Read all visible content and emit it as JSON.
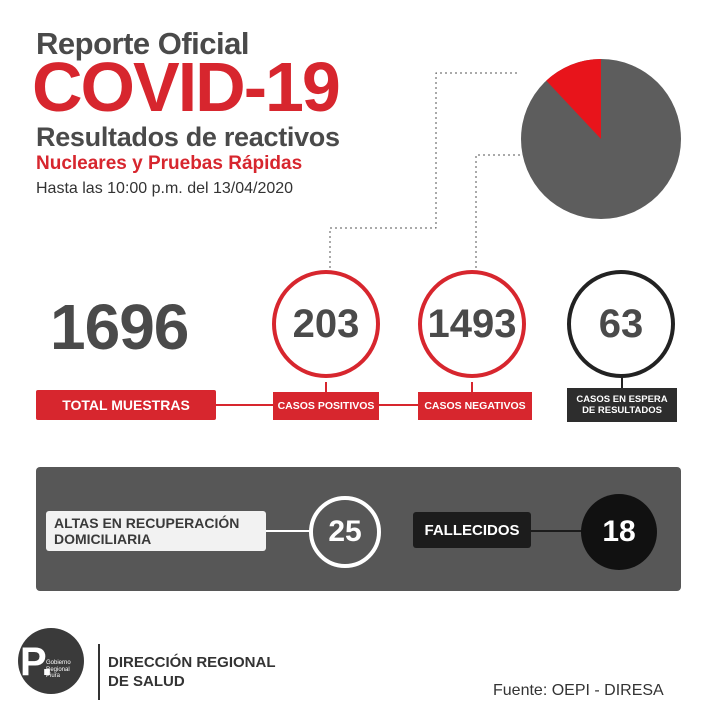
{
  "header": {
    "line1": "Reporte Oficial",
    "line2": "COVID-19",
    "line3": "Resultados de reactivos",
    "line4": "Nucleares y Pruebas Rápidas",
    "line5": "Hasta las 10:00 p.m. del  13/04/2020"
  },
  "stats": {
    "total": {
      "value": "1696",
      "label": "TOTAL MUESTRAS"
    },
    "positivos": {
      "value": "203",
      "label": "CASOS POSITIVOS"
    },
    "negativos": {
      "value": "1493",
      "label": "CASOS NEGATIVOS"
    },
    "espera": {
      "value": "63",
      "label_line1": "CASOS EN ESPERA",
      "label_line2": "DE RESULTADOS"
    }
  },
  "pie": {
    "positive_fraction": 0.12,
    "colors": {
      "positive": "#e8141b",
      "negative": "#5d5d5d"
    }
  },
  "panel": {
    "altas_label_line1": "ALTAS EN RECUPERACIÓN",
    "altas_label_line2": "DOMICILIARIA",
    "altas_value": "25",
    "fallecidos_label": "FALLECIDOS",
    "fallecidos_value": "18"
  },
  "footer": {
    "logo_letter": "P.",
    "logo_text": "Gobierno Regional Piura",
    "org_line1": "DIRECCIÓN REGIONAL",
    "org_line2": "DE SALUD",
    "source": "Fuente: OEPI - DIRESA"
  },
  "colors": {
    "accent": "#d7262e",
    "dark": "#2d2d2d",
    "panel": "#575757"
  }
}
